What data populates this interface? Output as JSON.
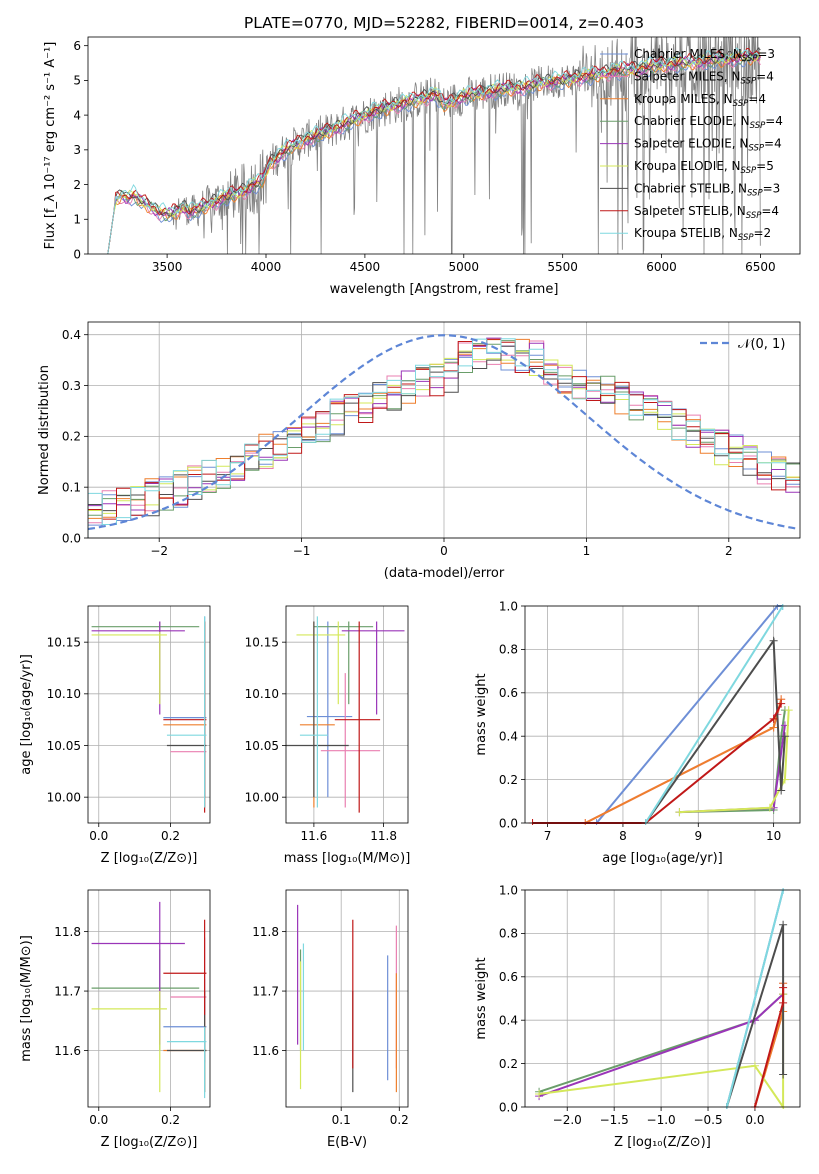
{
  "figure": {
    "title": "PLATE=0770, MJD=52282, FIBERID=0014, z=0.403"
  },
  "palette": {
    "Chabrier MILES": "#6e8fd6",
    "Salpeter MILES": "#e97fb0",
    "Kroupa MILES": "#ee7f2d",
    "Chabrier ELODIE": "#6a9e6a",
    "Salpeter ELODIE": "#9a35b8",
    "Kroupa ELODIE": "#d4e85a",
    "Chabrier STELIB": "#4d4d4d",
    "Salpeter STELIB": "#c01818",
    "Kroupa STELIB": "#7fd8df",
    "data": "#808080",
    "normal": "#5e86d6"
  },
  "chart_data": [
    {
      "id": "spectrum",
      "type": "line",
      "xlabel": "wavelength [Angstrom, rest frame]",
      "ylabel": "Flux [f_λ 10^{-17} erg cm^{-2} s^{-1} A^{-1}]",
      "xlim": [
        3100,
        6700
      ],
      "ylim": [
        0,
        6.25
      ],
      "xticks": [
        3500,
        4000,
        4500,
        5000,
        5500,
        6000,
        6500
      ],
      "yticks": [
        0,
        1,
        2,
        3,
        4,
        5,
        6
      ],
      "legend_position": "top-right",
      "grid": false,
      "legend": [
        {
          "model": "Chabrier MILES",
          "label": "Chabrier MILES, N",
          "sub": "SSP",
          "suffix": "=3"
        },
        {
          "model": "Salpeter MILES",
          "label": "Salpeter MILES, N",
          "sub": "SSP",
          "suffix": "=4"
        },
        {
          "model": "Kroupa MILES",
          "label": "Kroupa MILES, N",
          "sub": "SSP",
          "suffix": "=4"
        },
        {
          "model": "Chabrier ELODIE",
          "label": "Chabrier ELODIE, N",
          "sub": "SSP",
          "suffix": "=4"
        },
        {
          "model": "Salpeter ELODIE",
          "label": "Salpeter ELODIE, N",
          "sub": "SSP",
          "suffix": "=4"
        },
        {
          "model": "Kroupa ELODIE",
          "label": "Kroupa ELODIE, N",
          "sub": "SSP",
          "suffix": "=5"
        },
        {
          "model": "Chabrier STELIB",
          "label": "Chabrier STELIB, N",
          "sub": "SSP",
          "suffix": "=3"
        },
        {
          "model": "Salpeter STELIB",
          "label": "Salpeter STELIB, N",
          "sub": "SSP",
          "suffix": "=4"
        },
        {
          "model": "Kroupa STELIB",
          "label": "Kroupa STELIB, N",
          "sub": "SSP",
          "suffix": "=2"
        }
      ],
      "continuum": {
        "x": [
          3200,
          3240,
          3270,
          3300,
          3330,
          3360,
          3390,
          3420,
          3460,
          3500,
          3540,
          3580,
          3620,
          3660,
          3700,
          3740,
          3780,
          3820,
          3860,
          3900,
          3940,
          3980,
          4020,
          4100,
          4200,
          4300,
          4400,
          4500,
          4600,
          4700,
          4800,
          4860,
          4900,
          5000,
          5100,
          5200,
          5300,
          5400,
          5500,
          5600,
          5700,
          5800,
          5900,
          6000,
          6100,
          6200,
          6300,
          6400,
          6500
        ],
        "y": [
          0.0,
          1.55,
          1.7,
          1.6,
          1.7,
          1.55,
          1.45,
          1.35,
          1.2,
          1.15,
          1.2,
          1.35,
          1.2,
          1.3,
          1.4,
          1.5,
          1.6,
          1.7,
          1.75,
          1.85,
          2.0,
          2.1,
          2.6,
          3.0,
          3.3,
          3.5,
          3.75,
          4.0,
          4.2,
          4.35,
          4.5,
          4.6,
          4.3,
          4.55,
          4.65,
          4.75,
          4.8,
          4.95,
          5.0,
          5.1,
          5.2,
          5.3,
          5.35,
          5.45,
          5.5,
          5.55,
          5.6,
          5.65,
          5.7
        ]
      }
    },
    {
      "id": "residuals",
      "type": "histogram",
      "xlabel": "(data-model)/error",
      "ylabel": "Normed distribution",
      "xlim": [
        -2.5,
        2.5
      ],
      "ylim": [
        0,
        0.425
      ],
      "xticks": [
        -2,
        -1,
        0,
        1,
        2
      ],
      "yticks": [
        0.0,
        0.1,
        0.2,
        0.3,
        0.4
      ],
      "grid": true,
      "legend_position": "top-right",
      "normal_label": "𝒩(0, 1)",
      "bin_width": 0.1
    },
    {
      "id": "age-vs-Z",
      "type": "errorbar",
      "xlabel": "Z [log10(Z/Z⊙)]",
      "ylabel": "age  [log10(age/yr)]",
      "xlim": [
        -0.03,
        0.31
      ],
      "ylim": [
        9.975,
        10.185
      ],
      "xticks": [
        0.0,
        0.2
      ],
      "yticks": [
        10.0,
        10.05,
        10.1,
        10.15
      ],
      "grid": true,
      "points": [
        {
          "model": "Chabrier MILES",
          "x": 0.295,
          "y": 10.077,
          "xlo": 0.18,
          "xhi": 0.3,
          "ylo": 10.0,
          "yhi": 10.175
        },
        {
          "model": "Salpeter MILES",
          "x": 0.295,
          "y": 10.044,
          "xlo": 0.2,
          "xhi": 0.3,
          "ylo": 9.99,
          "yhi": 10.11
        },
        {
          "model": "Kroupa MILES",
          "x": 0.295,
          "y": 10.07,
          "xlo": 0.18,
          "xhi": 0.3,
          "ylo": 9.99,
          "yhi": 10.17
        },
        {
          "model": "Chabrier ELODIE",
          "x": 0.17,
          "y": 10.165,
          "xlo": -0.02,
          "xhi": 0.28,
          "ylo": 10.09,
          "yhi": 10.17
        },
        {
          "model": "Salpeter ELODIE",
          "x": 0.17,
          "y": 10.161,
          "xlo": -0.02,
          "xhi": 0.24,
          "ylo": 10.08,
          "yhi": 10.17
        },
        {
          "model": "Kroupa ELODIE",
          "x": 0.17,
          "y": 10.157,
          "xlo": -0.02,
          "xhi": 0.19,
          "ylo": 10.09,
          "yhi": 10.16
        },
        {
          "model": "Chabrier STELIB",
          "x": 0.295,
          "y": 10.05,
          "xlo": 0.19,
          "xhi": 0.3,
          "ylo": 10.0,
          "yhi": 10.17
        },
        {
          "model": "Salpeter STELIB",
          "x": 0.295,
          "y": 10.075,
          "xlo": 0.18,
          "xhi": 0.3,
          "ylo": 9.985,
          "yhi": 10.17
        },
        {
          "model": "Kroupa STELIB",
          "x": 0.295,
          "y": 10.06,
          "xlo": 0.19,
          "xhi": 0.3,
          "ylo": 9.99,
          "yhi": 10.175
        }
      ]
    },
    {
      "id": "age-vs-mass",
      "type": "errorbar",
      "xlabel": "mass [log10(M/M⊙)]",
      "ylabel": "",
      "xlim": [
        11.52,
        11.87
      ],
      "ylim": [
        9.975,
        10.185
      ],
      "xticks": [
        11.6,
        11.8
      ],
      "yticks": [
        10.0,
        10.05,
        10.1,
        10.15
      ],
      "grid": true,
      "points": [
        {
          "model": "Chabrier MILES",
          "x": 11.64,
          "y": 10.078,
          "xlo": 11.58,
          "xhi": 11.71,
          "ylo": 10.0,
          "yhi": 10.17
        },
        {
          "model": "Salpeter MILES",
          "x": 11.69,
          "y": 10.045,
          "xlo": 11.62,
          "xhi": 11.79,
          "ylo": 9.99,
          "yhi": 10.12
        },
        {
          "model": "Kroupa MILES",
          "x": 11.6,
          "y": 10.07,
          "xlo": 11.56,
          "xhi": 11.66,
          "ylo": 9.99,
          "yhi": 10.17
        },
        {
          "model": "Chabrier ELODIE",
          "x": 11.7,
          "y": 10.165,
          "xlo": 11.6,
          "xhi": 11.77,
          "ylo": 10.09,
          "yhi": 10.17
        },
        {
          "model": "Salpeter ELODIE",
          "x": 11.78,
          "y": 10.161,
          "xlo": 11.68,
          "xhi": 11.86,
          "ylo": 10.08,
          "yhi": 10.17
        },
        {
          "model": "Kroupa ELODIE",
          "x": 11.67,
          "y": 10.157,
          "xlo": 11.55,
          "xhi": 11.69,
          "ylo": 10.09,
          "yhi": 10.17
        },
        {
          "model": "Chabrier STELIB",
          "x": 11.6,
          "y": 10.05,
          "xlo": 11.52,
          "xhi": 11.7,
          "ylo": 10.0,
          "yhi": 10.17
        },
        {
          "model": "Salpeter STELIB",
          "x": 11.73,
          "y": 10.075,
          "xlo": 11.66,
          "xhi": 11.79,
          "ylo": 9.985,
          "yhi": 10.17
        },
        {
          "model": "Kroupa STELIB",
          "x": 11.61,
          "y": 10.06,
          "xlo": 11.56,
          "xhi": 11.64,
          "ylo": 9.99,
          "yhi": 10.175
        }
      ]
    },
    {
      "id": "mass-weight-vs-age",
      "type": "line",
      "xlabel": "age  [log10(age/yr)]",
      "ylabel": "mass weight",
      "xlim": [
        6.7,
        10.35
      ],
      "ylim": [
        0,
        1.0
      ],
      "xticks": [
        7,
        8,
        9,
        10
      ],
      "yticks": [
        0.0,
        0.2,
        0.4,
        0.6,
        0.8,
        1.0
      ],
      "grid": true,
      "series": [
        {
          "model": "Chabrier MILES",
          "x": [
            7.65,
            10.05,
            10.12
          ],
          "y": [
            0.0,
            1.0,
            1.0
          ]
        },
        {
          "model": "Salpeter MILES",
          "x": [
            7.5,
            10.0,
            10.05,
            10.1
          ],
          "y": [
            0.0,
            0.44,
            0.5,
            0.57
          ]
        },
        {
          "model": "Kroupa MILES",
          "x": [
            6.8,
            7.5,
            10.0,
            10.1
          ],
          "y": [
            0.0,
            0.0,
            0.44,
            0.57
          ]
        },
        {
          "model": "Chabrier ELODIE",
          "x": [
            8.75,
            10.0,
            10.1,
            10.15
          ],
          "y": [
            0.05,
            0.06,
            0.4,
            0.52
          ]
        },
        {
          "model": "Salpeter ELODIE",
          "x": [
            8.75,
            10.0,
            10.15
          ],
          "y": [
            0.05,
            0.07,
            0.45
          ]
        },
        {
          "model": "Kroupa ELODIE",
          "x": [
            8.75,
            9.95,
            10.15,
            10.2
          ],
          "y": [
            0.05,
            0.07,
            0.2,
            0.52
          ]
        },
        {
          "model": "Chabrier STELIB",
          "x": [
            8.3,
            10.0,
            10.1,
            10.15
          ],
          "y": [
            0.0,
            0.84,
            0.15,
            0.4
          ]
        },
        {
          "model": "Salpeter STELIB",
          "x": [
            6.8,
            8.3,
            10.0,
            10.1
          ],
          "y": [
            0.0,
            0.0,
            0.48,
            0.55
          ]
        },
        {
          "model": "Kroupa STELIB",
          "x": [
            8.3,
            10.12
          ],
          "y": [
            0.0,
            1.0
          ]
        }
      ]
    },
    {
      "id": "mass-vs-Z",
      "type": "errorbar",
      "xlabel": "Z [log10(Z/Z⊙)]",
      "ylabel": "mass [log10(M/M⊙)]",
      "xlim": [
        -0.03,
        0.31
      ],
      "ylim": [
        11.505,
        11.87
      ],
      "xticks": [
        0.0,
        0.2
      ],
      "yticks": [
        11.6,
        11.7,
        11.8
      ],
      "grid": true,
      "points": [
        {
          "model": "Chabrier MILES",
          "x": 0.295,
          "y": 11.64,
          "xlo": 0.18,
          "xhi": 0.3,
          "ylo": 11.58,
          "yhi": 11.72
        },
        {
          "model": "Salpeter MILES",
          "x": 0.295,
          "y": 11.69,
          "xlo": 0.2,
          "xhi": 0.3,
          "ylo": 11.62,
          "yhi": 11.79
        },
        {
          "model": "Kroupa MILES",
          "x": 0.295,
          "y": 11.6,
          "xlo": 0.18,
          "xhi": 0.3,
          "ylo": 11.53,
          "yhi": 11.66
        },
        {
          "model": "Chabrier ELODIE",
          "x": 0.17,
          "y": 11.705,
          "xlo": -0.02,
          "xhi": 0.28,
          "ylo": 11.6,
          "yhi": 11.77
        },
        {
          "model": "Salpeter ELODIE",
          "x": 0.17,
          "y": 11.78,
          "xlo": -0.02,
          "xhi": 0.24,
          "ylo": 11.61,
          "yhi": 11.85
        },
        {
          "model": "Kroupa ELODIE",
          "x": 0.17,
          "y": 11.67,
          "xlo": -0.02,
          "xhi": 0.19,
          "ylo": 11.53,
          "yhi": 11.7
        },
        {
          "model": "Chabrier STELIB",
          "x": 0.295,
          "y": 11.6,
          "xlo": 0.19,
          "xhi": 0.3,
          "ylo": 11.53,
          "yhi": 11.7
        },
        {
          "model": "Salpeter STELIB",
          "x": 0.295,
          "y": 11.73,
          "xlo": 0.18,
          "xhi": 0.3,
          "ylo": 11.66,
          "yhi": 11.82
        },
        {
          "model": "Kroupa STELIB",
          "x": 0.295,
          "y": 11.615,
          "xlo": 0.19,
          "xhi": 0.3,
          "ylo": 11.52,
          "yhi": 11.64
        }
      ]
    },
    {
      "id": "mass-vs-EBV",
      "type": "errorbar",
      "xlabel": "E(B-V)",
      "ylabel": "",
      "xlim": [
        0.005,
        0.215
      ],
      "ylim": [
        11.505,
        11.87
      ],
      "xticks": [
        0.0,
        0.1,
        0.2
      ],
      "yticks": [
        11.6,
        11.7,
        11.8
      ],
      "grid": true,
      "points": [
        {
          "model": "Chabrier MILES",
          "x": 0.18,
          "y": 11.64,
          "ylo": 11.55,
          "yhi": 11.76
        },
        {
          "model": "Salpeter MILES",
          "x": 0.195,
          "y": 11.69,
          "ylo": 11.57,
          "yhi": 11.81
        },
        {
          "model": "Kroupa MILES",
          "x": 0.195,
          "y": 11.62,
          "ylo": 11.53,
          "yhi": 11.73
        },
        {
          "model": "Chabrier ELODIE",
          "x": 0.03,
          "y": 11.7,
          "ylo": 11.6,
          "yhi": 11.77
        },
        {
          "model": "Salpeter ELODIE",
          "x": 0.025,
          "y": 11.75,
          "ylo": 11.61,
          "yhi": 11.845
        },
        {
          "model": "Kroupa ELODIE",
          "x": 0.03,
          "y": 11.62,
          "ylo": 11.535,
          "yhi": 11.75
        },
        {
          "model": "Chabrier STELIB",
          "x": 0.12,
          "y": 11.62,
          "ylo": 11.53,
          "yhi": 11.7
        },
        {
          "model": "Salpeter STELIB",
          "x": 0.12,
          "y": 11.7,
          "ylo": 11.57,
          "yhi": 11.82
        },
        {
          "model": "Kroupa STELIB",
          "x": 0.035,
          "y": 11.7,
          "ylo": 11.6,
          "yhi": 11.78
        }
      ]
    },
    {
      "id": "mass-weight-vs-Z",
      "type": "line",
      "xlabel": "Z [log10(Z/Z⊙)]",
      "ylabel": "mass weight",
      "xlim": [
        -2.45,
        0.48
      ],
      "ylim": [
        0,
        1.0
      ],
      "xticks": [
        -2.0,
        -1.5,
        -1.0,
        -0.5,
        0.0
      ],
      "yticks": [
        0.0,
        0.2,
        0.4,
        0.6,
        0.8,
        1.0
      ],
      "grid": true,
      "series": [
        {
          "model": "Chabrier MILES",
          "x": [
            -0.3,
            0.3
          ],
          "y": [
            0.0,
            1.0
          ]
        },
        {
          "model": "Salpeter MILES",
          "x": [
            0.0,
            0.3,
            0.3
          ],
          "y": [
            0.0,
            0.44,
            0.57
          ]
        },
        {
          "model": "Kroupa MILES",
          "x": [
            0.0,
            0.3,
            0.3
          ],
          "y": [
            0.0,
            0.44,
            0.57
          ]
        },
        {
          "model": "Chabrier ELODIE",
          "x": [
            -2.3,
            0.0,
            0.3
          ],
          "y": [
            0.07,
            0.4,
            0.52
          ]
        },
        {
          "model": "Salpeter ELODIE",
          "x": [
            -2.3,
            0.0,
            0.3
          ],
          "y": [
            0.05,
            0.4,
            0.52
          ]
        },
        {
          "model": "Kroupa ELODIE",
          "x": [
            -2.3,
            0.0,
            0.3,
            0.3
          ],
          "y": [
            0.06,
            0.19,
            0.0,
            0.52
          ]
        },
        {
          "model": "Chabrier STELIB",
          "x": [
            -0.3,
            0.3,
            0.3
          ],
          "y": [
            0.0,
            0.84,
            0.15
          ]
        },
        {
          "model": "Salpeter STELIB",
          "x": [
            0.0,
            0.3,
            0.3
          ],
          "y": [
            0.0,
            0.48,
            0.55
          ]
        },
        {
          "model": "Kroupa STELIB",
          "x": [
            -0.3,
            0.3
          ],
          "y": [
            0.0,
            1.0
          ]
        }
      ]
    }
  ]
}
